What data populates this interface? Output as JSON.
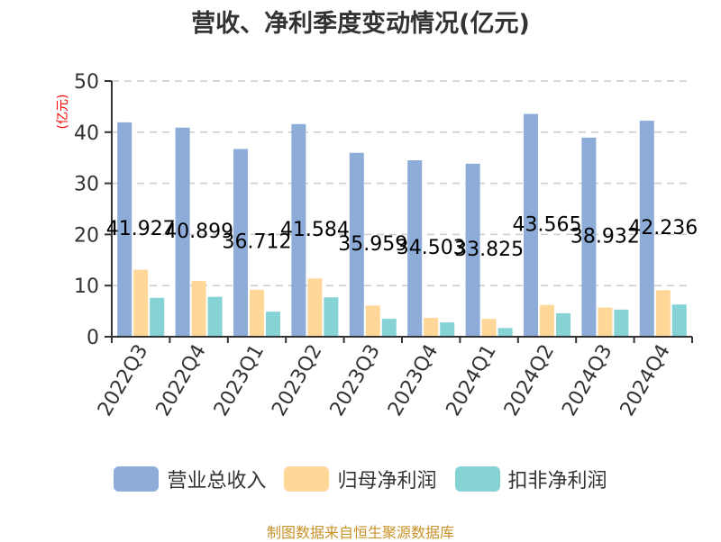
{
  "title": "营收、净利季度变动情况(亿元)",
  "y_unit": "(亿元)",
  "footer": "制图数据来自恒生聚源数据库",
  "colors": {
    "revenue": "#8eacd8",
    "net_profit": "#ffd899",
    "deducted_net_profit": "#86d3d6",
    "axis": "#333333",
    "grid": "#cccccc",
    "unit": "#ff0000",
    "footer": "#c8922a"
  },
  "legend": [
    {
      "label": "营业总收入",
      "color": "#8eacd8"
    },
    {
      "label": "归母净利润",
      "color": "#ffd899"
    },
    {
      "label": "扣非净利润",
      "color": "#86d3d6"
    }
  ],
  "chart_data": {
    "type": "bar",
    "title": "营收、净利季度变动情况(亿元)",
    "xlabel": "",
    "ylabel": "(亿元)",
    "ylim": [
      0,
      50
    ],
    "yticks": [
      0,
      10,
      20,
      30,
      40,
      50
    ],
    "grid": true,
    "legend_position": "bottom",
    "categories": [
      "2022Q3",
      "2022Q4",
      "2023Q1",
      "2023Q2",
      "2023Q3",
      "2023Q4",
      "2024Q1",
      "2024Q2",
      "2024Q3",
      "2024Q4"
    ],
    "series": [
      {
        "name": "营业总收入",
        "values": [
          41.927,
          40.899,
          36.712,
          41.584,
          35.959,
          34.503,
          33.825,
          43.565,
          38.932,
          42.236
        ],
        "labeled": true
      },
      {
        "name": "归母净利润",
        "values": [
          13.1,
          10.9,
          9.2,
          11.4,
          6.1,
          3.7,
          3.5,
          6.2,
          5.7,
          9.1
        ],
        "labeled": false
      },
      {
        "name": "扣非净利润",
        "values": [
          7.6,
          7.8,
          4.9,
          7.7,
          3.5,
          2.8,
          1.7,
          4.6,
          5.3,
          6.3
        ],
        "labeled": false
      }
    ]
  }
}
